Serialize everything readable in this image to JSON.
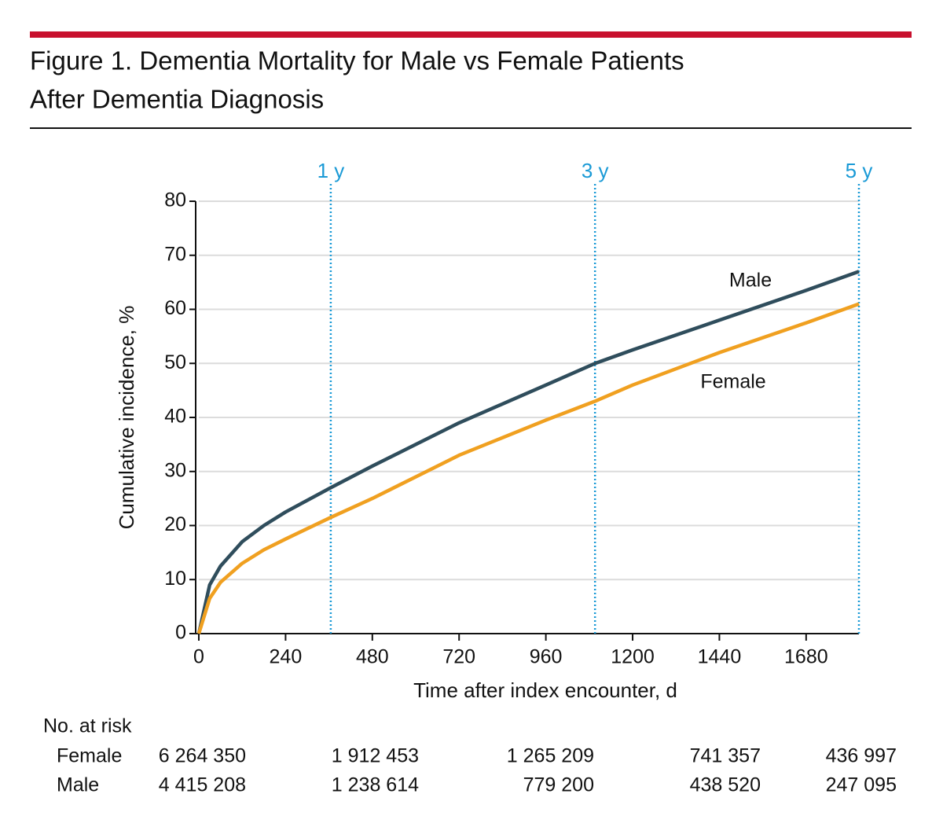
{
  "header": {
    "title": [
      "Figure 1. Dementia Mortality for Male vs Female Patients",
      "After Dementia Diagnosis"
    ]
  },
  "chart_data": {
    "type": "line",
    "x": [
      0,
      30,
      60,
      120,
      180,
      240,
      365,
      480,
      600,
      720,
      960,
      1096,
      1200,
      1440,
      1680,
      1826
    ],
    "series": [
      {
        "name": "Male",
        "color": "#2f4d5c",
        "values": [
          0,
          9,
          12.5,
          17,
          20,
          22.5,
          27,
          31,
          35,
          39,
          46,
          50,
          52.5,
          58,
          63.5,
          67
        ]
      },
      {
        "name": "Female",
        "color": "#f0a020",
        "values": [
          0,
          6.5,
          9.5,
          13,
          15.5,
          17.5,
          21.5,
          25,
          29,
          33,
          39.5,
          43,
          46,
          52,
          57.5,
          61
        ]
      }
    ],
    "x_label": "Time after index encounter, d",
    "y_label": "Cumulative incidence, %",
    "xlim": [
      0,
      1826
    ],
    "xticks": [
      0,
      240,
      480,
      720,
      960,
      1200,
      1440,
      1680
    ],
    "ylim": [
      0,
      80
    ],
    "yticks": [
      0,
      10,
      20,
      30,
      40,
      50,
      60,
      70,
      80
    ],
    "grid": true,
    "reference_lines": [
      {
        "x": 365,
        "label": "1 y"
      },
      {
        "x": 1096,
        "label": "3 y"
      },
      {
        "x": 1826,
        "label": "5 y"
      }
    ],
    "reference_color": "#1a9ad6"
  },
  "risk_table": {
    "title": "No. at risk",
    "rows": [
      {
        "name": "Female",
        "cells": [
          "6 264 350",
          "1 912 453",
          "1 265 209",
          "741 357",
          "436 997"
        ]
      },
      {
        "name": "Male",
        "cells": [
          "4 415 208",
          "1 238 614",
          "779 200",
          "438 520",
          "247 095"
        ]
      }
    ]
  }
}
